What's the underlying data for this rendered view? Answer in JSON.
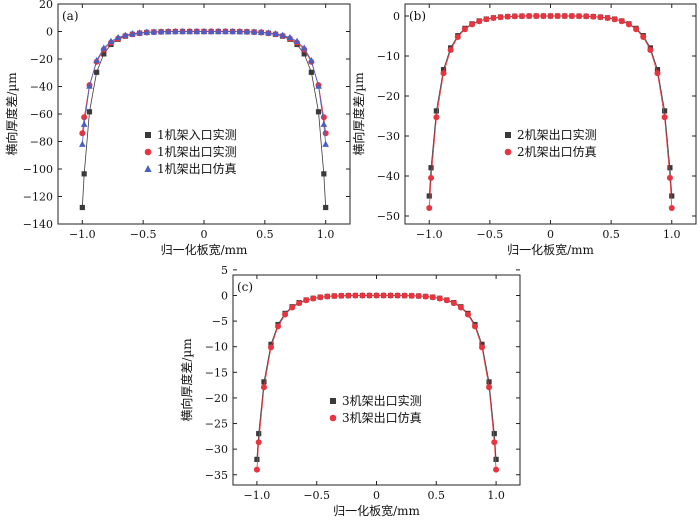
{
  "figure": {
    "panels_count": 3
  },
  "chart_data": [
    {
      "type": "line",
      "panel_label": "(a)",
      "xlabel": "归一化板宽/mm",
      "ylabel": "横向厚度差/µm",
      "xlim": [
        -1.2,
        1.2
      ],
      "ylim": [
        -140,
        20
      ],
      "xticks": [
        -1.0,
        -0.5,
        0,
        0.5,
        1.0
      ],
      "xtick_labels": [
        "−1.0",
        "−0.5",
        "0",
        "0.5",
        "1.0"
      ],
      "yticks": [
        -140,
        -120,
        -100,
        -80,
        -60,
        -40,
        -20,
        0,
        20
      ],
      "ytick_labels": [
        "−140",
        "−120",
        "−100",
        "−80",
        "−60",
        "−40",
        "−20",
        "0",
        "20"
      ],
      "legend_position": "center",
      "series": [
        {
          "name": "1机架入口实测",
          "marker": "square",
          "color": "#3a3a3a",
          "profile": {
            "edge": -128,
            "power": 4.5
          }
        },
        {
          "name": "1机架出口实测",
          "marker": "circle",
          "color": "#e8343f",
          "profile": {
            "edge": -74,
            "power": 4.0
          }
        },
        {
          "name": "1机架出口仿真",
          "marker": "triangle",
          "color": "#4a5fc4",
          "profile": {
            "edge": -82,
            "power": 4.3
          }
        }
      ]
    },
    {
      "type": "line",
      "panel_label": "(b)",
      "xlabel": "归一化板宽/mm",
      "ylabel": "横向厚度差/µm",
      "xlim": [
        -1.2,
        1.2
      ],
      "ylim": [
        -52,
        3
      ],
      "xticks": [
        -1.0,
        -0.5,
        0,
        0.5,
        1.0
      ],
      "xtick_labels": [
        "−1.0",
        "−0.5",
        "0",
        "0.5",
        "1.0"
      ],
      "yticks": [
        -50,
        -40,
        -30,
        -20,
        -10,
        0
      ],
      "ytick_labels": [
        "−50",
        "−40",
        "−30",
        "−20",
        "−10",
        "0"
      ],
      "legend_position": "center-right",
      "series": [
        {
          "name": "2机架出口实测",
          "marker": "square",
          "color": "#3a3a3a",
          "profile": {
            "edge": -45,
            "power": 4.0
          }
        },
        {
          "name": "2机架出口仿真",
          "marker": "circle",
          "color": "#e8343f",
          "profile": {
            "edge": -48,
            "power": 4.0
          }
        }
      ]
    },
    {
      "type": "line",
      "panel_label": "(c)",
      "xlabel": "归一化板宽/mm",
      "ylabel": "横向厚度差/µm",
      "xlim": [
        -1.2,
        1.2
      ],
      "ylim": [
        -37,
        4
      ],
      "xticks": [
        -1.0,
        -0.5,
        0,
        0.5,
        1.0
      ],
      "xtick_labels": [
        "−1.0",
        "−0.5",
        "0",
        "0.5",
        "1.0"
      ],
      "yticks": [
        -35,
        -30,
        -25,
        -20,
        -15,
        -10,
        -5,
        0,
        5
      ],
      "ytick_labels": [
        "−35",
        "−30",
        "−25",
        "−20",
        "−15",
        "−10",
        "−5",
        "0",
        "5"
      ],
      "legend_position": "center",
      "series": [
        {
          "name": "3机架出口实测",
          "marker": "square",
          "color": "#3a3a3a",
          "profile": {
            "edge": -32,
            "power": 4.0
          }
        },
        {
          "name": "3机架出口仿真",
          "marker": "circle",
          "color": "#e8343f",
          "profile": {
            "edge": -34,
            "power": 4.0
          }
        }
      ]
    }
  ]
}
